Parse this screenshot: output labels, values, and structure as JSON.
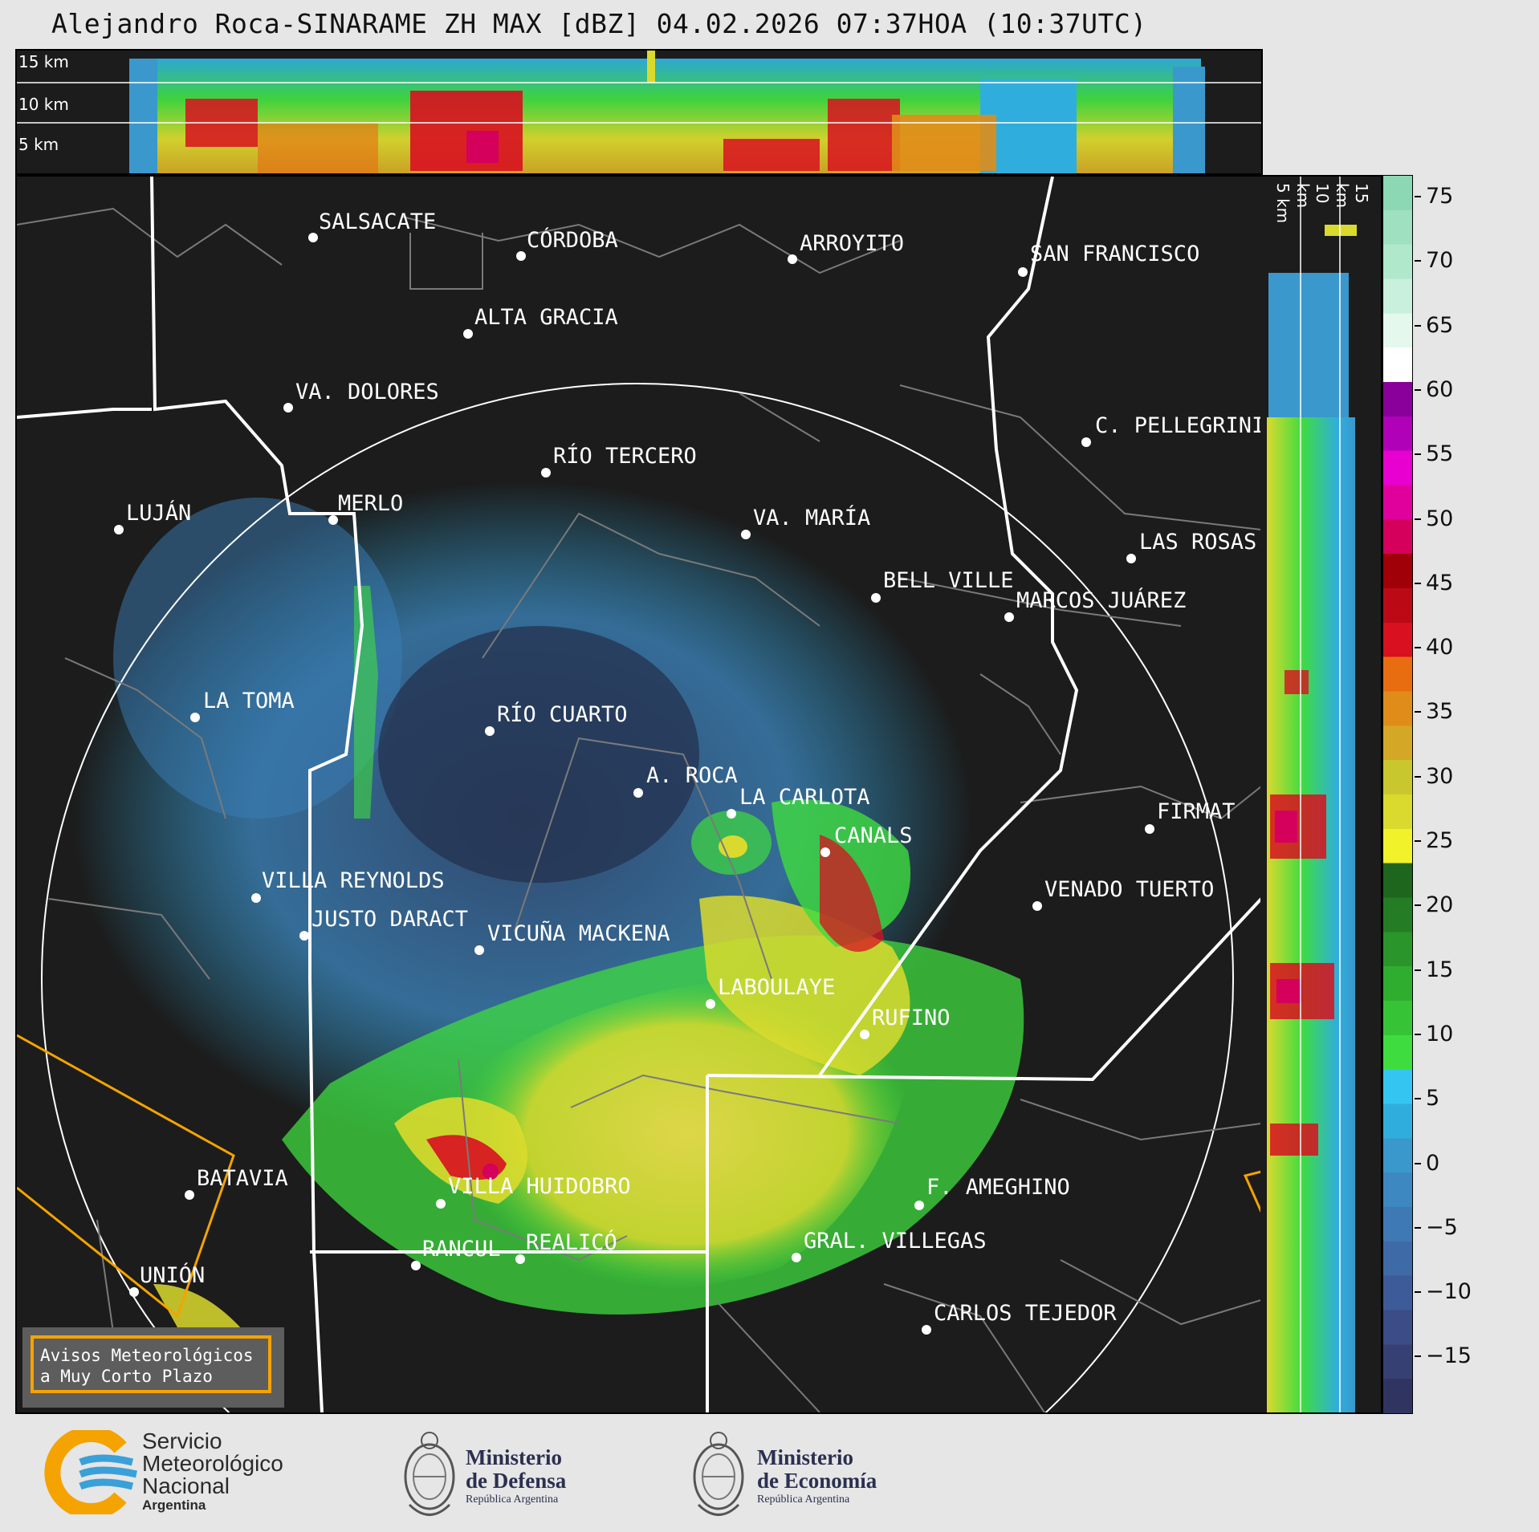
{
  "header": {
    "title": "Alejandro Roca-SINARAME ZH MAX [dBZ] 04.02.2026 07:37HOA (10:37UTC)"
  },
  "top_panel": {
    "altitudes": [
      "15 km",
      "10 km",
      "5 km"
    ]
  },
  "side_panel": {
    "altitudes": [
      "5 km",
      "10 km",
      "15 km"
    ]
  },
  "map": {
    "cities": [
      {
        "name": "SALSACATE"
      },
      {
        "name": "CÓRDOBA"
      },
      {
        "name": "ARROYITO"
      },
      {
        "name": "SAN FRANCISCO"
      },
      {
        "name": "ALTA GRACIA"
      },
      {
        "name": "VA. DOLORES"
      },
      {
        "name": "C. PELLEGRINI"
      },
      {
        "name": "RÍO TERCERO"
      },
      {
        "name": "LUJÁN"
      },
      {
        "name": "MERLO"
      },
      {
        "name": "VA. MARÍA"
      },
      {
        "name": "LAS ROSAS"
      },
      {
        "name": "BELL VILLE"
      },
      {
        "name": "MARCOS JUÁREZ"
      },
      {
        "name": "LA TOMA"
      },
      {
        "name": "RÍO CUARTO"
      },
      {
        "name": "A. ROCA"
      },
      {
        "name": "LA CARLOTA"
      },
      {
        "name": "FIRMAT"
      },
      {
        "name": "CANALS"
      },
      {
        "name": "VILLA REYNOLDS"
      },
      {
        "name": "VENADO TUERTO"
      },
      {
        "name": "JUSTO DARACT"
      },
      {
        "name": "VICUÑA MACKENA"
      },
      {
        "name": "LABOULAYE"
      },
      {
        "name": "RUFINO"
      },
      {
        "name": "BATAVIA"
      },
      {
        "name": "VILLA HUIDOBRO"
      },
      {
        "name": "F. AMEGHINO"
      },
      {
        "name": "REALICÓ"
      },
      {
        "name": "RANCUL"
      },
      {
        "name": "GRAL. VILLEGAS"
      },
      {
        "name": "UNIÓN"
      },
      {
        "name": "CARLOS TEJEDOR"
      }
    ]
  },
  "colorbar": {
    "unit": "dBZ",
    "ticks": [
      "75",
      "70",
      "65",
      "60",
      "55",
      "50",
      "45",
      "40",
      "35",
      "30",
      "25",
      "20",
      "15",
      "10",
      "5",
      "0",
      "−5",
      "−10",
      "−15"
    ],
    "colors": [
      "#2f3560",
      "#364072",
      "#3b4c86",
      "#3d5b99",
      "#3f6aa8",
      "#3f79b5",
      "#3d88c1",
      "#3a98cd",
      "#2faedd",
      "#34c6f0",
      "#3fdc3f",
      "#36c436",
      "#2fad2f",
      "#2a952a",
      "#247d24",
      "#1e661e",
      "#f2f22a",
      "#dada2e",
      "#c8c82e",
      "#d4a826",
      "#e08c1a",
      "#e86d10",
      "#d81020",
      "#bb0a15",
      "#a00008",
      "#d4005c",
      "#e0009c",
      "#e800d0",
      "#b000b8",
      "#880099",
      "#ffffff",
      "#e5f8ee",
      "#c8f0dc",
      "#b0e8cc",
      "#9ee0c0",
      "#8cd8b4"
    ]
  },
  "aviso": {
    "line1": "Avisos Meteorológicos",
    "line2": "a Muy Corto Plazo"
  },
  "logos": {
    "smn": {
      "l1": "Servicio",
      "l2": "Meteorológico",
      "l3": "Nacional",
      "l4": "Argentina"
    },
    "defensa": {
      "l1": "Ministerio",
      "l2": "de Defensa",
      "l3": "República Argentina"
    },
    "economia": {
      "l1": "Ministerio",
      "l2": "de Economía",
      "l3": "República Argentina"
    }
  }
}
